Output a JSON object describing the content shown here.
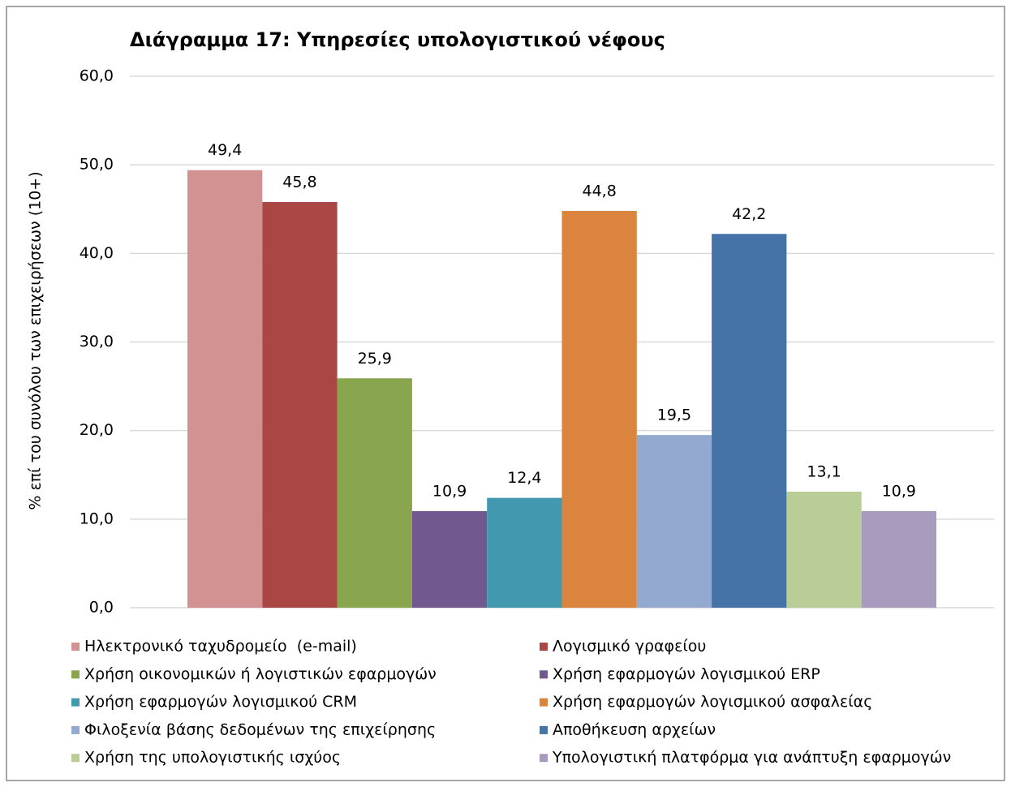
{
  "chart_data": {
    "type": "bar",
    "title": "Διάγραμμα 17: Υπηρεσίες υπολογιστικού νέφους",
    "y_label": "% επί του συνόλου των επιχειρήσεων (10+)",
    "series": [
      {
        "name": "Ηλεκτρονικό ταχυδρομείο  (e-mail)",
        "color": "#d39292",
        "values": [
          49.4
        ],
        "value_labels": [
          "49,4"
        ]
      },
      {
        "name": "Λογισμικό γραφείου",
        "color": "#aa4643",
        "values": [
          45.8
        ],
        "value_labels": [
          "45,8"
        ]
      },
      {
        "name": "Χρήση οικονομικών ή λογιστικών εφαρμογών",
        "color": "#89a54e",
        "values": [
          25.9
        ],
        "value_labels": [
          "25,9"
        ]
      },
      {
        "name": "Χρήση εφαρμογών λογισμικού ERP",
        "color": "#71588f",
        "values": [
          10.9
        ],
        "value_labels": [
          "10,9"
        ]
      },
      {
        "name": "Χρήση εφαρμογών λογισμικού CRM",
        "color": "#4198af",
        "values": [
          12.4
        ],
        "value_labels": [
          "12,4"
        ]
      },
      {
        "name": "Χρήση εφαρμογών λογισμικού ασφαλείας",
        "color": "#db843d",
        "values": [
          44.8
        ],
        "value_labels": [
          "44,8"
        ]
      },
      {
        "name": "Φιλοξενία βάσης δεδομένων της επιχείρησης",
        "color": "#93a9cf",
        "values": [
          19.5
        ],
        "value_labels": [
          "19,5"
        ]
      },
      {
        "name": "Αποθήκευση αρχείων",
        "color": "#4572a7",
        "values": [
          42.2
        ],
        "value_labels": [
          "42,2"
        ]
      },
      {
        "name": "Χρήση της υπολογιστικής ισχύος",
        "color": "#b9cd96",
        "values": [
          13.1
        ],
        "value_labels": [
          "13,1"
        ]
      },
      {
        "name": "Υπολογιστική πλατφόρμα για ανάπτυξη εφαρμογών",
        "color": "#a99bbd",
        "values": [
          10.9
        ],
        "value_labels": [
          "10,9"
        ]
      }
    ],
    "ylim": [
      0,
      60
    ],
    "yticks": [
      {
        "value": 0,
        "label": "0,0"
      },
      {
        "value": 10,
        "label": "10,0"
      },
      {
        "value": 20,
        "label": "20,0"
      },
      {
        "value": 30,
        "label": "30,0"
      },
      {
        "value": 40,
        "label": "40,0"
      },
      {
        "value": 50,
        "label": "50,0"
      },
      {
        "value": 60,
        "label": "60,0"
      }
    ],
    "grid": true
  }
}
